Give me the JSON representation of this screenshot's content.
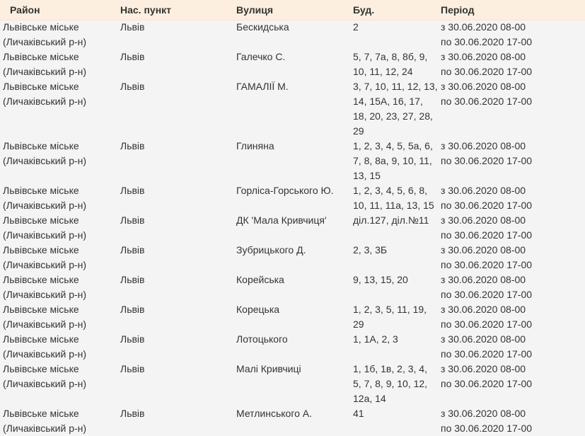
{
  "table": {
    "headers": [
      "Район",
      "Нас. пункт",
      "Вулиця",
      "Буд.",
      "Період"
    ],
    "rows": [
      {
        "district": "Львівське міське (Личаківський р-н)",
        "city": "Львів",
        "street": "Бескидська",
        "buildings": "2",
        "from": "з 30.06.2020 08-00",
        "to": "по 30.06.2020 17-00"
      },
      {
        "district": "Львівське міське (Личаківський р-н)",
        "city": "Львів",
        "street": "Галечко С.",
        "buildings": "5, 7, 7а, 8, 8б, 9, 10, 11, 12, 24",
        "from": "з 30.06.2020 08-00",
        "to": "по 30.06.2020 17-00"
      },
      {
        "district": "Львівське міське (Личаківський р-н)",
        "city": "Львів",
        "street": "ГАМАЛІЇ М.",
        "buildings": "3, 7, 10, 11, 12, 13, 14, 15А, 16, 17, 18, 20, 23, 27, 28, 29",
        "from": "з 30.06.2020 08-00",
        "to": "по 30.06.2020 17-00"
      },
      {
        "district": "Львівське міське (Личаківський р-н)",
        "city": "Львів",
        "street": "Глиняна",
        "buildings": "1, 2, 3, 4, 5, 5а, 6, 7, 8, 8а, 9, 10, 11, 13, 15",
        "from": "з 30.06.2020 08-00",
        "to": "по 30.06.2020 17-00"
      },
      {
        "district": "Львівське міське (Личаківський р-н)",
        "city": "Львів",
        "street": "Горліса-Горського Ю.",
        "buildings": "1, 2, 3, 4, 5, 6, 8, 10, 11, 11а, 13, 15",
        "from": "з 30.06.2020 08-00",
        "to": "по 30.06.2020 17-00"
      },
      {
        "district": "Львівське міське (Личаківський р-н)",
        "city": "Львів",
        "street": "ДК 'Мала Кривчиця'",
        "buildings": "діл.127, діл.№11",
        "from": "з 30.06.2020 08-00",
        "to": "по 30.06.2020 17-00"
      },
      {
        "district": "Львівське міське (Личаківський р-н)",
        "city": "Львів",
        "street": "Зубрицького Д.",
        "buildings": "2, 3, 3Б",
        "from": "з 30.06.2020 08-00",
        "to": "по 30.06.2020 17-00"
      },
      {
        "district": "Львівське міське (Личаківський р-н)",
        "city": "Львів",
        "street": "Корейська",
        "buildings": "9, 13, 15, 20",
        "from": "з 30.06.2020 08-00",
        "to": "по 30.06.2020 17-00"
      },
      {
        "district": "Львівське міське (Личаківський р-н)",
        "city": "Львів",
        "street": "Корецька",
        "buildings": "1, 2, 3, 5, 11, 19, 29",
        "from": "з 30.06.2020 08-00",
        "to": "по 30.06.2020 17-00"
      },
      {
        "district": "Львівське міське (Личаківський р-н)",
        "city": "Львів",
        "street": "Лотоцького",
        "buildings": "1, 1А, 2, 3",
        "from": "з 30.06.2020 08-00",
        "to": "по 30.06.2020 17-00"
      },
      {
        "district": "Львівське міське (Личаківський р-н)",
        "city": "Львів",
        "street": "Малі Кривчиці",
        "buildings": "1, 1б, 1в, 2, 3, 4, 5, 7, 8, 9, 10, 12, 12а, 14",
        "from": "з 30.06.2020 08-00",
        "to": "по 30.06.2020 17-00"
      },
      {
        "district": "Львівське міське (Личаківський р-н)",
        "city": "Львів",
        "street": "Метлинського А.",
        "buildings": "41",
        "from": "з 30.06.2020 08-00",
        "to": "по 30.06.2020 17-00"
      }
    ]
  }
}
